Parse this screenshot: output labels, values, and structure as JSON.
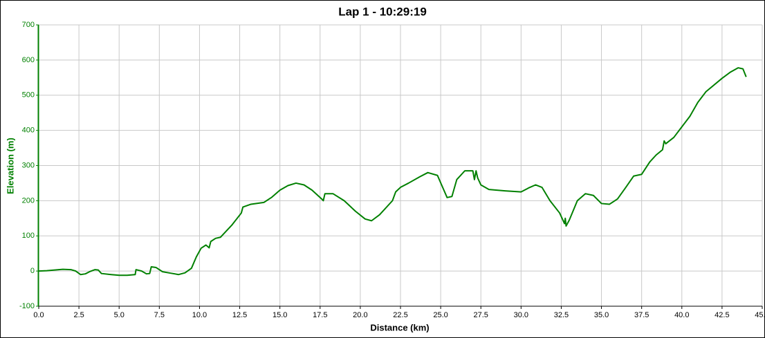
{
  "chart_data": {
    "type": "line",
    "title": "Lap 1 - 10:29:19",
    "xlabel": "Distance (km)",
    "ylabel": "Elevation (m)",
    "color": "#008000",
    "grid": true,
    "xlim": [
      0,
      45
    ],
    "ylim": [
      -100,
      700
    ],
    "xticks": [
      {
        "value": 0,
        "label": "0.0"
      },
      2.5,
      {
        "value": 5,
        "label": "5.0"
      },
      7.5,
      {
        "value": 10,
        "label": "10.0"
      },
      12.5,
      {
        "value": 15,
        "label": "15.0"
      },
      17.5,
      {
        "value": 20,
        "label": "20.0"
      },
      22.5,
      {
        "value": 25,
        "label": "25.0"
      },
      27.5,
      {
        "value": 30,
        "label": "30.0"
      },
      32.5,
      {
        "value": 35,
        "label": "35.0"
      },
      37.5,
      {
        "value": 40,
        "label": "40.0"
      },
      42.5,
      {
        "value": 45,
        "label": "45.0"
      }
    ],
    "yticks": [
      -100,
      0,
      100,
      200,
      300,
      400,
      500,
      600,
      700
    ],
    "x": [
      0,
      0.5,
      1.0,
      1.5,
      2.0,
      2.3,
      2.6,
      2.9,
      3.2,
      3.5,
      3.7,
      3.9,
      4.5,
      5.0,
      5.5,
      6.0,
      6.05,
      6.4,
      6.7,
      6.9,
      7.0,
      7.3,
      7.7,
      8.2,
      8.7,
      9.1,
      9.5,
      9.8,
      10.1,
      10.4,
      10.6,
      10.7,
      11.0,
      11.3,
      12.0,
      12.6,
      12.7,
      13.2,
      14.0,
      14.5,
      15.0,
      15.5,
      16.0,
      16.5,
      17.0,
      17.6,
      17.7,
      17.8,
      18.3,
      19.0,
      19.7,
      20.3,
      20.7,
      21.2,
      22.0,
      22.2,
      22.5,
      23.0,
      23.7,
      24.2,
      24.8,
      25.2,
      25.4,
      25.7,
      26.0,
      26.5,
      27.0,
      27.1,
      27.2,
      27.3,
      27.5,
      28.0,
      29.0,
      30.0,
      30.5,
      30.9,
      31.3,
      31.8,
      32.4,
      32.7,
      32.75,
      32.8,
      33.0,
      33.5,
      34.0,
      34.5,
      35.0,
      35.5,
      36.0,
      36.5,
      37.0,
      37.5,
      38.0,
      38.4,
      38.8,
      38.9,
      39.0,
      39.5,
      40.0,
      40.5,
      41.0,
      41.5,
      42.5,
      43.0,
      43.5,
      43.8,
      44.0
    ],
    "values": [
      0,
      1,
      3,
      5,
      4,
      0,
      -10,
      -8,
      -1,
      4,
      3,
      -7,
      -10,
      -12,
      -12,
      -10,
      4,
      0,
      -8,
      -7,
      12,
      10,
      -2,
      -6,
      -10,
      -5,
      8,
      40,
      65,
      74,
      66,
      84,
      93,
      96,
      130,
      165,
      182,
      190,
      195,
      210,
      230,
      243,
      250,
      245,
      230,
      205,
      200,
      220,
      220,
      200,
      170,
      148,
      143,
      160,
      200,
      225,
      238,
      250,
      268,
      280,
      272,
      230,
      209,
      212,
      260,
      285,
      285,
      260,
      285,
      265,
      245,
      232,
      228,
      225,
      237,
      245,
      238,
      200,
      165,
      135,
      150,
      128,
      145,
      200,
      220,
      215,
      192,
      190,
      205,
      237,
      270,
      275,
      310,
      330,
      345,
      370,
      362,
      380,
      410,
      440,
      480,
      510,
      548,
      565,
      578,
      575,
      552
    ]
  }
}
